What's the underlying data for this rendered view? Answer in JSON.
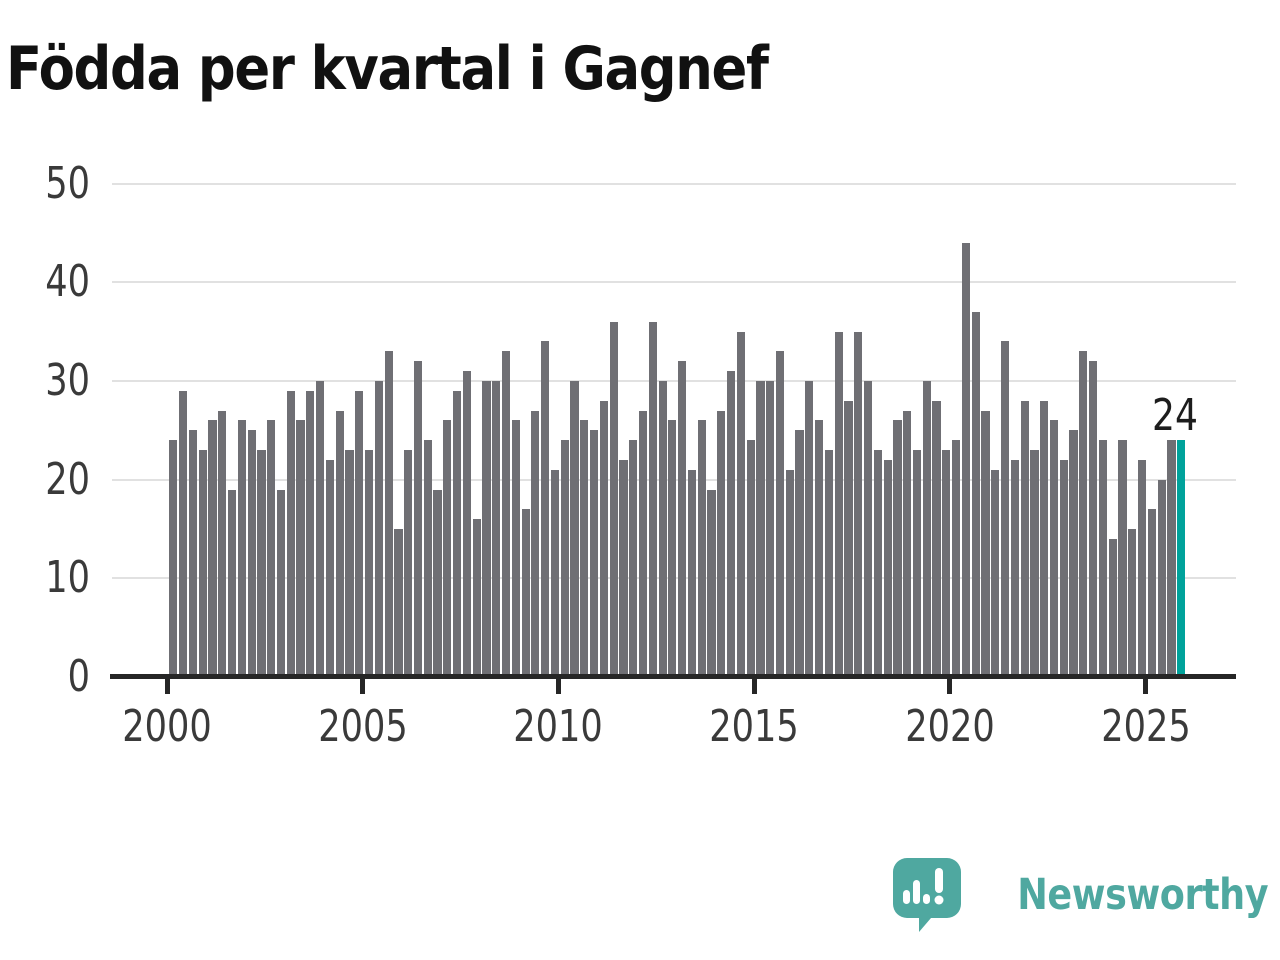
{
  "title": "Födda per kvartal i Gagnef",
  "branding": {
    "logo_text": "Newsworthy",
    "logo_icon": "bar-chart-speech-bubble-icon"
  },
  "colors": {
    "bar": "#6F6F74",
    "highlight": "#00A29B",
    "grid": "#E1E1E1",
    "axis": "#262626",
    "axis_label": "#3A3A3A",
    "title_text": "#111111",
    "annotation_text": "#1D1D1D",
    "logo_teal": "#4FA8A0",
    "background": "#FFFFFF"
  },
  "chart_data": {
    "type": "bar",
    "title": "Födda per kvartal i Gagnef",
    "x_unit": "quarter",
    "start_year": 2000,
    "start_quarter": 1,
    "values": [
      24,
      29,
      25,
      23,
      26,
      27,
      19,
      26,
      25,
      23,
      26,
      19,
      29,
      26,
      29,
      30,
      22,
      27,
      23,
      29,
      23,
      30,
      33,
      15,
      23,
      32,
      24,
      19,
      26,
      29,
      31,
      16,
      30,
      30,
      33,
      26,
      17,
      27,
      34,
      21,
      24,
      30,
      26,
      25,
      28,
      36,
      22,
      24,
      27,
      36,
      30,
      26,
      32,
      21,
      26,
      19,
      27,
      31,
      35,
      24,
      30,
      30,
      33,
      21,
      25,
      30,
      26,
      23,
      35,
      28,
      35,
      30,
      23,
      22,
      26,
      27,
      23,
      30,
      28,
      23,
      24,
      44,
      37,
      27,
      21,
      34,
      22,
      28,
      23,
      28,
      26,
      22,
      25,
      33,
      32,
      24,
      14,
      24,
      15,
      22,
      17,
      20,
      24,
      24
    ],
    "y_ticks": [
      0,
      10,
      20,
      30,
      40,
      50
    ],
    "y_tick_labels": [
      "0",
      "10",
      "20",
      "30",
      "40",
      "50"
    ],
    "x_tick_years": [
      2000,
      2005,
      2010,
      2015,
      2020,
      2025
    ],
    "x_tick_labels": [
      "2000",
      "2005",
      "2010",
      "2015",
      "2020",
      "2025"
    ],
    "ylim": [
      0,
      52
    ],
    "grid": "horizontal",
    "legend": "none",
    "highlight": {
      "position": "last-bar",
      "label": "24"
    }
  }
}
